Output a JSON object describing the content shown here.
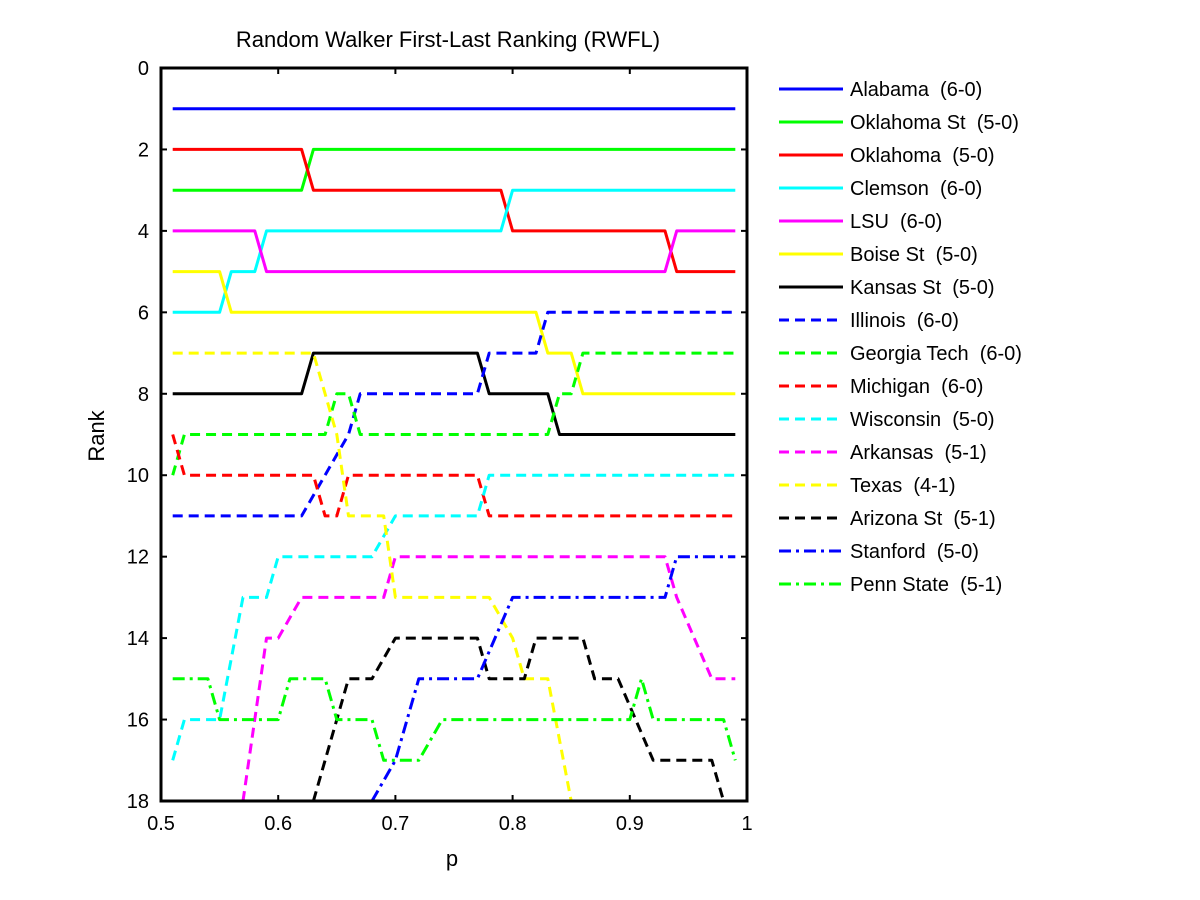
{
  "chart_data": {
    "type": "line",
    "title": "Random Walker First-Last Ranking (RWFL)",
    "xlabel": "p",
    "ylabel": "Rank",
    "xlim": [
      0.5,
      1
    ],
    "ylim": [
      0,
      18
    ],
    "y_reversed": true,
    "xticks": [
      "0.5",
      "0.6",
      "0.7",
      "0.8",
      "0.9",
      "1"
    ],
    "yticks": [
      "0",
      "2",
      "4",
      "6",
      "8",
      "10",
      "12",
      "14",
      "16",
      "18"
    ],
    "grid": false,
    "legend_position": "outside-right",
    "series": [
      {
        "name": "Alabama",
        "record": "(6-0)",
        "color": "#0000ff",
        "dash": "solid",
        "points": [
          [
            0.51,
            1
          ],
          [
            0.99,
            1
          ]
        ]
      },
      {
        "name": "Oklahoma St",
        "record": "(5-0)",
        "color": "#00ff00",
        "dash": "solid",
        "points": [
          [
            0.51,
            3
          ],
          [
            0.62,
            3
          ],
          [
            0.63,
            2
          ],
          [
            0.99,
            2
          ]
        ]
      },
      {
        "name": "Oklahoma",
        "record": "(5-0)",
        "color": "#ff0000",
        "dash": "solid",
        "points": [
          [
            0.51,
            2
          ],
          [
            0.62,
            2
          ],
          [
            0.63,
            3
          ],
          [
            0.79,
            3
          ],
          [
            0.8,
            4
          ],
          [
            0.93,
            4
          ],
          [
            0.94,
            5
          ],
          [
            0.99,
            5
          ]
        ]
      },
      {
        "name": "Clemson",
        "record": "(6-0)",
        "color": "#00ffff",
        "dash": "solid",
        "points": [
          [
            0.51,
            6
          ],
          [
            0.55,
            6
          ],
          [
            0.56,
            5
          ],
          [
            0.58,
            5
          ],
          [
            0.59,
            4
          ],
          [
            0.79,
            4
          ],
          [
            0.8,
            3
          ],
          [
            0.99,
            3
          ]
        ]
      },
      {
        "name": "LSU",
        "record": "(6-0)",
        "color": "#ff00ff",
        "dash": "solid",
        "points": [
          [
            0.51,
            4
          ],
          [
            0.58,
            4
          ],
          [
            0.59,
            5
          ],
          [
            0.93,
            5
          ],
          [
            0.94,
            4
          ],
          [
            0.99,
            4
          ]
        ]
      },
      {
        "name": "Boise St",
        "record": "(5-0)",
        "color": "#ffff00",
        "dash": "solid",
        "points": [
          [
            0.51,
            5
          ],
          [
            0.55,
            5
          ],
          [
            0.56,
            6
          ],
          [
            0.82,
            6
          ],
          [
            0.83,
            7
          ],
          [
            0.85,
            7
          ],
          [
            0.86,
            8
          ],
          [
            0.99,
            8
          ]
        ]
      },
      {
        "name": "Kansas St",
        "record": "(5-0)",
        "color": "#000000",
        "dash": "solid",
        "points": [
          [
            0.51,
            8
          ],
          [
            0.62,
            8
          ],
          [
            0.63,
            7
          ],
          [
            0.77,
            7
          ],
          [
            0.78,
            8
          ],
          [
            0.83,
            8
          ],
          [
            0.84,
            9
          ],
          [
            0.99,
            9
          ]
        ]
      },
      {
        "name": "Illinois",
        "record": "(6-0)",
        "color": "#0000ff",
        "dash": "dash",
        "points": [
          [
            0.51,
            11
          ],
          [
            0.62,
            11
          ],
          [
            0.66,
            9
          ],
          [
            0.67,
            8
          ],
          [
            0.77,
            8
          ],
          [
            0.78,
            7
          ],
          [
            0.82,
            7
          ],
          [
            0.83,
            6
          ],
          [
            0.99,
            6
          ]
        ]
      },
      {
        "name": "Georgia Tech",
        "record": "(6-0)",
        "color": "#00ff00",
        "dash": "dash",
        "points": [
          [
            0.51,
            10
          ],
          [
            0.52,
            9
          ],
          [
            0.64,
            9
          ],
          [
            0.65,
            8
          ],
          [
            0.66,
            8
          ],
          [
            0.67,
            9
          ],
          [
            0.83,
            9
          ],
          [
            0.84,
            8
          ],
          [
            0.85,
            8
          ],
          [
            0.86,
            7
          ],
          [
            0.99,
            7
          ]
        ]
      },
      {
        "name": "Michigan",
        "record": "(6-0)",
        "color": "#ff0000",
        "dash": "dash",
        "points": [
          [
            0.51,
            9
          ],
          [
            0.52,
            10
          ],
          [
            0.63,
            10
          ],
          [
            0.64,
            11
          ],
          [
            0.65,
            11
          ],
          [
            0.66,
            10
          ],
          [
            0.77,
            10
          ],
          [
            0.78,
            11
          ],
          [
            0.99,
            11
          ]
        ]
      },
      {
        "name": "Wisconsin",
        "record": "(5-0)",
        "color": "#00ffff",
        "dash": "dash",
        "points": [
          [
            0.51,
            17
          ],
          [
            0.52,
            16
          ],
          [
            0.55,
            16
          ],
          [
            0.57,
            13
          ],
          [
            0.59,
            13
          ],
          [
            0.6,
            12
          ],
          [
            0.68,
            12
          ],
          [
            0.7,
            11
          ],
          [
            0.77,
            11
          ],
          [
            0.78,
            10
          ],
          [
            0.99,
            10
          ]
        ]
      },
      {
        "name": "Arkansas",
        "record": "(5-1)",
        "color": "#ff00ff",
        "dash": "dash",
        "points": [
          [
            0.57,
            18
          ],
          [
            0.59,
            14
          ],
          [
            0.6,
            14
          ],
          [
            0.62,
            13
          ],
          [
            0.69,
            13
          ],
          [
            0.7,
            12
          ],
          [
            0.93,
            12
          ],
          [
            0.94,
            13
          ],
          [
            0.97,
            15
          ],
          [
            0.99,
            15
          ]
        ]
      },
      {
        "name": "Texas",
        "record": "(4-1)",
        "color": "#ffff00",
        "dash": "dash",
        "points": [
          [
            0.51,
            7
          ],
          [
            0.63,
            7
          ],
          [
            0.65,
            9
          ],
          [
            0.66,
            11
          ],
          [
            0.69,
            11
          ],
          [
            0.7,
            13
          ],
          [
            0.78,
            13
          ],
          [
            0.8,
            14
          ],
          [
            0.81,
            15
          ],
          [
            0.83,
            15
          ],
          [
            0.85,
            18
          ]
        ]
      },
      {
        "name": "Arizona St",
        "record": "(5-1)",
        "color": "#000000",
        "dash": "dash",
        "points": [
          [
            0.63,
            18
          ],
          [
            0.65,
            16
          ],
          [
            0.66,
            15
          ],
          [
            0.68,
            15
          ],
          [
            0.7,
            14
          ],
          [
            0.77,
            14
          ],
          [
            0.78,
            15
          ],
          [
            0.81,
            15
          ],
          [
            0.82,
            14
          ],
          [
            0.86,
            14
          ],
          [
            0.87,
            15
          ],
          [
            0.89,
            15
          ],
          [
            0.92,
            17
          ],
          [
            0.97,
            17
          ],
          [
            0.98,
            18
          ]
        ]
      },
      {
        "name": "Stanford",
        "record": "(5-0)",
        "color": "#0000ff",
        "dash": "dashdot",
        "points": [
          [
            0.68,
            18
          ],
          [
            0.7,
            17
          ],
          [
            0.71,
            16
          ],
          [
            0.72,
            15
          ],
          [
            0.77,
            15
          ],
          [
            0.8,
            13
          ],
          [
            0.93,
            13
          ],
          [
            0.94,
            12
          ],
          [
            0.99,
            12
          ]
        ]
      },
      {
        "name": "Penn State",
        "record": "(5-1)",
        "color": "#00ff00",
        "dash": "dashdot",
        "points": [
          [
            0.51,
            15
          ],
          [
            0.54,
            15
          ],
          [
            0.55,
            16
          ],
          [
            0.6,
            16
          ],
          [
            0.61,
            15
          ],
          [
            0.64,
            15
          ],
          [
            0.65,
            16
          ],
          [
            0.68,
            16
          ],
          [
            0.69,
            17
          ],
          [
            0.72,
            17
          ],
          [
            0.74,
            16
          ],
          [
            0.9,
            16
          ],
          [
            0.91,
            15
          ],
          [
            0.92,
            16
          ],
          [
            0.98,
            16
          ],
          [
            0.99,
            17
          ]
        ]
      }
    ]
  }
}
